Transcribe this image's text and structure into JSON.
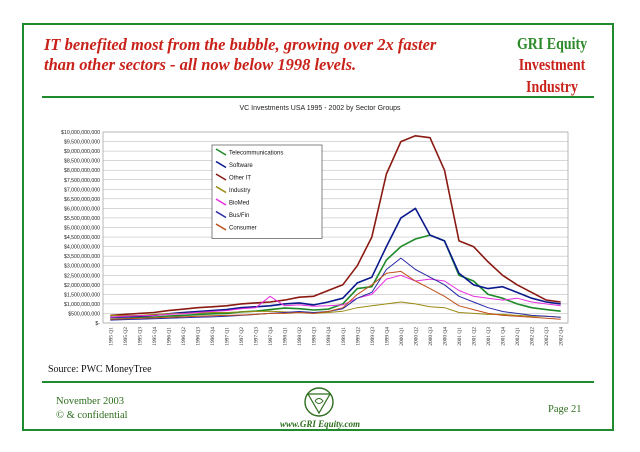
{
  "header": {
    "headline_line1": "IT benefited most from the bubble, growing over 2x faster",
    "headline_line2": "than other sectors - all now below 1998 levels.",
    "brand_line1": "GRI Equity",
    "brand_line2": "Investment Industry"
  },
  "footer": {
    "source": "Source: PWC MoneyTree",
    "date": "November 2003",
    "confidential": "© & confidential",
    "url": "www.GRI Equity.com",
    "page": "Page 21"
  },
  "colors": {
    "frame": "#1f8a2e",
    "headline": "#c8221a",
    "brand_green": "#2d8a2a"
  },
  "chart_data": {
    "type": "line",
    "title": "VC Investments USA 1995 - 2002 by Sector Groups",
    "xlabel": "",
    "ylabel": "",
    "ylim": [
      0,
      10000000000
    ],
    "y_tick_step": 500000000,
    "y_tick_labels": [
      "$-",
      "$500,000,000",
      "$1,000,000,000",
      "$1,500,000,000",
      "$2,000,000,000",
      "$2,500,000,000",
      "$3,000,000,000",
      "$3,500,000,000",
      "$4,000,000,000",
      "$4,500,000,000",
      "$5,000,000,000",
      "$5,500,000,000",
      "$6,000,000,000",
      "$6,500,000,000",
      "$7,000,000,000",
      "$7,500,000,000",
      "$8,000,000,000",
      "$8,500,000,000",
      "$9,000,000,000",
      "$9,500,000,000",
      "$10,000,000,000"
    ],
    "grid": true,
    "legend_position": "top-left",
    "categories": [
      "1995 Q1",
      "1995 Q2",
      "1995 Q3",
      "1995 Q4",
      "1996 Q1",
      "1996 Q2",
      "1996 Q3",
      "1996 Q4",
      "1997 Q1",
      "1997 Q2",
      "1997 Q3",
      "1997 Q4",
      "1998 Q1",
      "1998 Q2",
      "1998 Q3",
      "1998 Q4",
      "1999 Q1",
      "1999 Q2",
      "1999 Q3",
      "1999 Q4",
      "2000 Q1",
      "2000 Q2",
      "2000 Q3",
      "2000 Q4",
      "2001 Q1",
      "2001 Q2",
      "2001 Q3",
      "2001 Q4",
      "2002 Q1",
      "2002 Q2",
      "2002 Q3",
      "2002 Q4"
    ],
    "series": [
      {
        "name": "Telecommunications",
        "color": "#1e8a2a",
        "values": [
          0.2,
          0.22,
          0.28,
          0.3,
          0.36,
          0.4,
          0.44,
          0.48,
          0.5,
          0.58,
          0.62,
          0.7,
          0.78,
          0.75,
          0.68,
          0.72,
          1.0,
          1.8,
          1.9,
          3.3,
          4.0,
          4.4,
          4.6,
          4.3,
          2.5,
          2.2,
          1.5,
          1.3,
          1.0,
          0.8,
          0.7,
          0.62
        ]
      },
      {
        "name": "Software",
        "color": "#0a1a8c",
        "values": [
          0.3,
          0.32,
          0.35,
          0.4,
          0.48,
          0.55,
          0.6,
          0.65,
          0.7,
          0.8,
          0.85,
          0.9,
          1.0,
          1.05,
          0.95,
          1.1,
          1.3,
          2.1,
          2.4,
          4.0,
          5.5,
          6.0,
          4.6,
          4.3,
          2.6,
          2.0,
          1.8,
          1.9,
          1.6,
          1.3,
          1.1,
          1.0
        ]
      },
      {
        "name": "Other IT",
        "color": "#8a1a12",
        "values": [
          0.4,
          0.45,
          0.5,
          0.55,
          0.65,
          0.72,
          0.8,
          0.85,
          0.9,
          1.0,
          1.05,
          1.1,
          1.2,
          1.35,
          1.4,
          1.7,
          2.0,
          3.0,
          4.5,
          7.8,
          9.5,
          9.8,
          9.7,
          8.0,
          4.3,
          4.0,
          3.2,
          2.5,
          2.0,
          1.6,
          1.2,
          1.1
        ]
      },
      {
        "name": "Industry",
        "color": "#9a8a12",
        "values": [
          0.4,
          0.38,
          0.4,
          0.45,
          0.48,
          0.5,
          0.52,
          0.55,
          0.55,
          0.58,
          0.6,
          0.62,
          0.58,
          0.55,
          0.5,
          0.55,
          0.62,
          0.8,
          0.9,
          1.0,
          1.1,
          1.0,
          0.85,
          0.8,
          0.55,
          0.5,
          0.45,
          0.45,
          0.4,
          0.35,
          0.35,
          0.3
        ]
      },
      {
        "name": "BioMed",
        "color": "#e82ee0",
        "values": [
          0.3,
          0.35,
          0.38,
          0.4,
          0.45,
          0.48,
          0.55,
          0.6,
          0.65,
          0.75,
          0.8,
          1.4,
          0.9,
          0.95,
          0.88,
          0.9,
          0.95,
          1.3,
          1.5,
          2.3,
          2.5,
          2.2,
          2.3,
          2.2,
          1.7,
          1.4,
          1.3,
          1.2,
          1.3,
          1.1,
          1.0,
          0.9
        ]
      },
      {
        "name": "Bus/Fin",
        "color": "#2a2aa6",
        "values": [
          0.15,
          0.18,
          0.2,
          0.22,
          0.25,
          0.28,
          0.3,
          0.32,
          0.35,
          0.4,
          0.45,
          0.5,
          0.55,
          0.6,
          0.55,
          0.6,
          0.75,
          1.3,
          1.6,
          2.8,
          3.4,
          2.8,
          2.4,
          2.0,
          1.4,
          1.1,
          0.8,
          0.6,
          0.5,
          0.4,
          0.35,
          0.3
        ]
      },
      {
        "name": "Consumer",
        "color": "#c0501a",
        "values": [
          0.2,
          0.22,
          0.25,
          0.28,
          0.3,
          0.32,
          0.35,
          0.38,
          0.4,
          0.42,
          0.45,
          0.5,
          0.5,
          0.55,
          0.5,
          0.6,
          0.8,
          1.5,
          2.0,
          2.6,
          2.7,
          2.2,
          1.8,
          1.4,
          0.9,
          0.7,
          0.5,
          0.4,
          0.35,
          0.3,
          0.25,
          0.2
        ]
      }
    ],
    "value_unit_multiplier": 1000000000
  }
}
